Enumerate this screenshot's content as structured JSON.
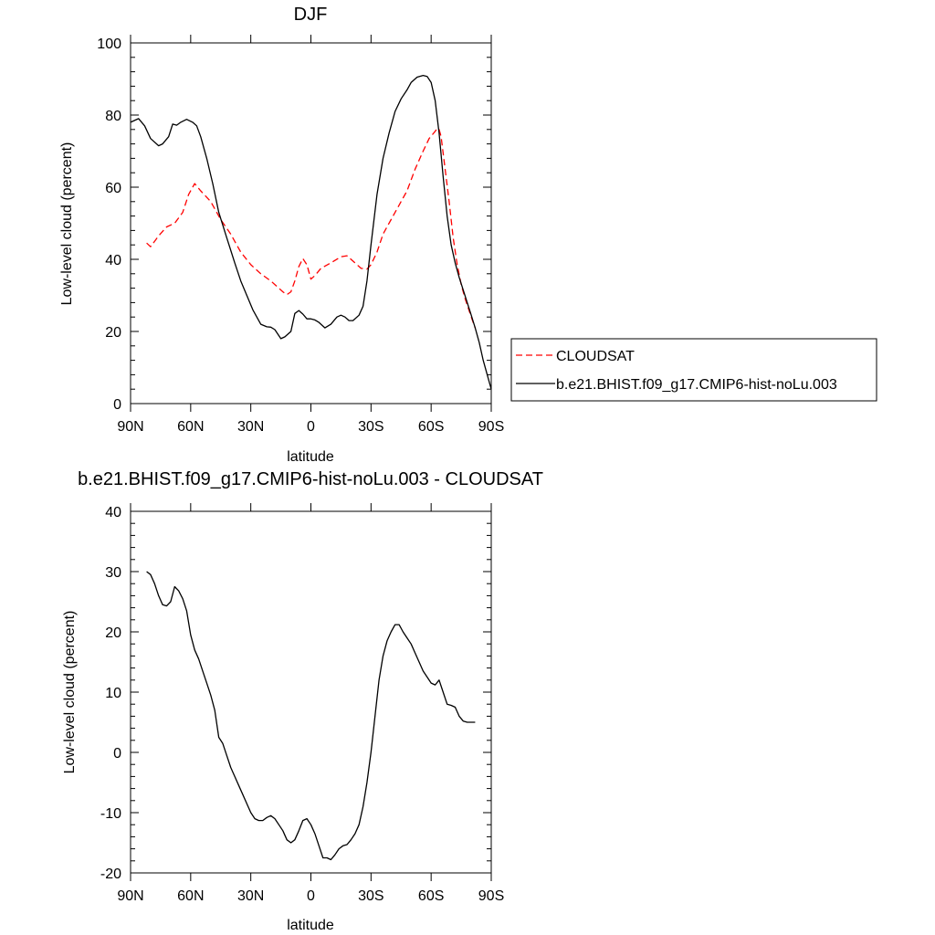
{
  "chart_data": [
    {
      "type": "line",
      "title": "DJF",
      "xlabel": "latitude",
      "ylabel": "Low-level cloud (percent)",
      "xlim": [
        -90,
        90
      ],
      "ylim": [
        0,
        100
      ],
      "x_ticks": [
        -90,
        -60,
        -30,
        0,
        30,
        60,
        90
      ],
      "x_tick_labels": [
        "90N",
        "60N",
        "30N",
        "0",
        "30S",
        "60S",
        "90S"
      ],
      "y_ticks": [
        0,
        20,
        40,
        60,
        80,
        100
      ],
      "y_tick_labels": [
        "0",
        "20",
        "40",
        "60",
        "80",
        "100"
      ],
      "legend_position": "right",
      "series": [
        {
          "name": "CLOUDSAT",
          "color": "#ff0000",
          "dash": "dashed",
          "x": [
            -82,
            -80,
            -76,
            -72,
            -68,
            -64,
            -61,
            -58,
            -55,
            -50,
            -45,
            -40,
            -35,
            -30,
            -25,
            -20,
            -16,
            -14,
            -12,
            -10,
            -8,
            -6,
            -4,
            -2,
            0,
            2,
            5,
            10,
            15,
            18,
            20,
            22,
            25,
            28,
            30,
            33,
            36,
            40,
            44,
            48,
            52,
            56,
            59,
            62,
            63,
            64,
            65,
            67,
            69,
            71,
            73,
            75,
            77,
            80,
            82
          ],
          "y": [
            44.5,
            43.5,
            46.5,
            49,
            50,
            53,
            58,
            61,
            59,
            56,
            51,
            47,
            42,
            38.5,
            36,
            34,
            32,
            31,
            30.2,
            31,
            34,
            38,
            40.2,
            38.5,
            34.5,
            35.5,
            37.5,
            39,
            40.7,
            41,
            40,
            39,
            37.5,
            37.3,
            38.5,
            42,
            47,
            51,
            55,
            59,
            65,
            70,
            73.5,
            75.5,
            76.3,
            76,
            74,
            65,
            56,
            46,
            38.5,
            33,
            29,
            24,
            21
          ]
        },
        {
          "name": "b.e21.BHIST.f09_g17.CMIP6-hist-noLu.003",
          "color": "#000000",
          "dash": "solid",
          "x": [
            -90,
            -88,
            -86,
            -83,
            -80,
            -76,
            -74,
            -71,
            -69,
            -67,
            -65,
            -62,
            -59,
            -57,
            -55,
            -52,
            -49,
            -46,
            -42,
            -38,
            -35,
            -32,
            -29,
            -25,
            -22,
            -20,
            -18,
            -15,
            -13,
            -10,
            -8,
            -6,
            -4,
            -2,
            0,
            2,
            4,
            7,
            10,
            13,
            15,
            17,
            19,
            21,
            24,
            26,
            28,
            30,
            33,
            36,
            39,
            42,
            45,
            48,
            50,
            53,
            56,
            58,
            60,
            62,
            64,
            66,
            68,
            70,
            72,
            74,
            76,
            78,
            80,
            82,
            84,
            86,
            88,
            90
          ],
          "y": [
            78,
            78.5,
            79,
            77,
            73.5,
            71.5,
            72,
            74,
            77.5,
            77.2,
            78,
            78.8,
            78,
            77,
            74,
            68,
            61,
            53,
            46,
            39,
            34,
            30,
            26,
            22,
            21.3,
            21.2,
            20.5,
            18,
            18.5,
            20,
            25,
            25.8,
            24.8,
            23.5,
            23.5,
            23.2,
            22.5,
            21,
            22,
            24,
            24.5,
            24,
            23,
            23,
            24.5,
            27,
            34,
            44,
            58,
            68,
            75,
            81,
            84.5,
            87,
            89,
            90.5,
            91,
            90.7,
            89,
            84,
            75,
            63,
            52,
            44,
            39,
            35,
            31.5,
            28,
            24.5,
            21,
            17,
            12,
            8,
            4
          ]
        }
      ]
    },
    {
      "type": "line",
      "title": "b.e21.BHIST.f09_g17.CMIP6-hist-noLu.003 - CLOUDSAT",
      "xlabel": "latitude",
      "ylabel": "Low-level cloud (percent)",
      "xlim": [
        -90,
        90
      ],
      "ylim": [
        -20,
        40
      ],
      "x_ticks": [
        -90,
        -60,
        -30,
        0,
        30,
        60,
        90
      ],
      "x_tick_labels": [
        "90N",
        "60N",
        "30N",
        "0",
        "30S",
        "60S",
        "90S"
      ],
      "y_ticks": [
        -20,
        -10,
        0,
        10,
        20,
        30,
        40
      ],
      "y_tick_labels": [
        "-20",
        "-10",
        "0",
        "10",
        "20",
        "30",
        "40"
      ],
      "series": [
        {
          "color": "#000000",
          "dash": "solid",
          "x": [
            -82,
            -80,
            -78,
            -76,
            -74,
            -72,
            -70,
            -68,
            -66,
            -64,
            -62,
            -60,
            -58,
            -56,
            -54,
            -52,
            -50,
            -48,
            -46,
            -44,
            -42,
            -40,
            -38,
            -36,
            -34,
            -32,
            -30,
            -28,
            -26,
            -24,
            -22,
            -20,
            -18,
            -16,
            -14,
            -12,
            -10,
            -8,
            -6,
            -4,
            -2,
            0,
            2,
            4,
            6,
            8,
            10,
            12,
            14,
            16,
            18,
            20,
            22,
            24,
            26,
            28,
            30,
            32,
            34,
            36,
            38,
            40,
            42,
            44,
            46,
            48,
            50,
            52,
            54,
            56,
            58,
            60,
            62,
            64,
            66,
            68,
            70,
            72,
            74,
            76,
            78,
            80,
            82
          ],
          "y": [
            30,
            29.5,
            28,
            26,
            24.5,
            24.3,
            25,
            27.5,
            26.8,
            25.5,
            23.5,
            19.5,
            17,
            15.5,
            13.5,
            11.5,
            9.5,
            7,
            2.5,
            1.5,
            -0.5,
            -2.5,
            -4,
            -5.5,
            -7,
            -8.5,
            -10,
            -11,
            -11.3,
            -11.3,
            -10.8,
            -10.5,
            -11,
            -12,
            -13,
            -14.5,
            -15,
            -14.5,
            -13,
            -11.3,
            -11,
            -12,
            -13.5,
            -15.5,
            -17.5,
            -17.5,
            -17.8,
            -17,
            -16,
            -15.5,
            -15.3,
            -14.5,
            -13.5,
            -12,
            -9,
            -5,
            0,
            6,
            12,
            16,
            18.5,
            20,
            21.2,
            21.2,
            20,
            19,
            18,
            16.5,
            15,
            13.5,
            12.5,
            11.5,
            11.2,
            12,
            10,
            8,
            7.8,
            7.5,
            6,
            5.2,
            5,
            5,
            5
          ]
        }
      ]
    }
  ]
}
